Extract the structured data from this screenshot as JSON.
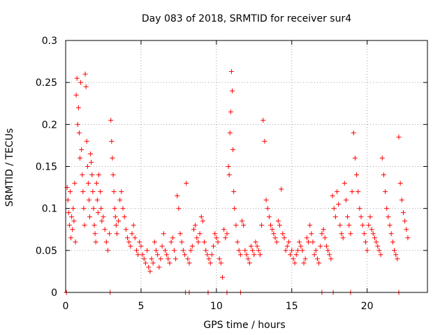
{
  "chart_data": {
    "type": "scatter",
    "title": "Day 083 of 2018, SRMTID for receiver sur4",
    "xlabel": "GPS time / hours",
    "ylabel": "SRMTID / TECUs",
    "xlim": [
      0,
      24
    ],
    "ylim": [
      0,
      0.3
    ],
    "xticks": [
      0,
      5,
      10,
      15,
      20
    ],
    "xtick_labels": [
      "0",
      "5",
      "10",
      "15",
      "20"
    ],
    "yticks": [
      0,
      0.05,
      0.1,
      0.15,
      0.2,
      0.25,
      0.3
    ],
    "ytick_labels": [
      "0",
      "0.05",
      "0.1",
      "0.15",
      "0.2",
      "0.25",
      "0.3"
    ],
    "grid": true,
    "marker": "plus",
    "series_color": "#ff0000",
    "series": [
      {
        "name": "SRMTID",
        "points": [
          [
            0.1,
            0.125
          ],
          [
            0.15,
            0.11
          ],
          [
            0.2,
            0.095
          ],
          [
            0.25,
            0.08
          ],
          [
            0.3,
            0.12
          ],
          [
            0.35,
            0.065
          ],
          [
            0.4,
            0.09
          ],
          [
            0.45,
            0.075
          ],
          [
            0.5,
            0.1
          ],
          [
            0.55,
            0.085
          ],
          [
            0.6,
            0.13
          ],
          [
            0.65,
            0.06
          ],
          [
            0.7,
            0.235
          ],
          [
            0.75,
            0.255
          ],
          [
            0.8,
            0.2
          ],
          [
            0.85,
            0.22
          ],
          [
            0.9,
            0.19
          ],
          [
            0.95,
            0.16
          ],
          [
            1.0,
            0.25
          ],
          [
            1.05,
            0.17
          ],
          [
            1.1,
            0.14
          ],
          [
            1.15,
            0.12
          ],
          [
            1.2,
            0.1
          ],
          [
            1.25,
            0.08
          ],
          [
            1.3,
            0.26
          ],
          [
            1.35,
            0.245
          ],
          [
            1.4,
            0.18
          ],
          [
            1.45,
            0.15
          ],
          [
            1.5,
            0.13
          ],
          [
            1.55,
            0.11
          ],
          [
            1.6,
            0.09
          ],
          [
            1.65,
            0.165
          ],
          [
            1.7,
            0.155
          ],
          [
            1.75,
            0.14
          ],
          [
            1.8,
            0.12
          ],
          [
            1.85,
            0.1
          ],
          [
            1.9,
            0.08
          ],
          [
            1.95,
            0.07
          ],
          [
            2.0,
            0.06
          ],
          [
            2.05,
            0.13
          ],
          [
            2.1,
            0.11
          ],
          [
            2.15,
            0.095
          ],
          [
            2.2,
            0.14
          ],
          [
            2.3,
            0.12
          ],
          [
            2.35,
            0.1
          ],
          [
            2.4,
            0.085
          ],
          [
            2.5,
            0.09
          ],
          [
            2.6,
            0.075
          ],
          [
            2.7,
            0.06
          ],
          [
            2.8,
            0.05
          ],
          [
            2.9,
            0.07
          ],
          [
            3.0,
            0.205
          ],
          [
            3.05,
            0.18
          ],
          [
            3.1,
            0.16
          ],
          [
            3.15,
            0.14
          ],
          [
            3.2,
            0.12
          ],
          [
            3.25,
            0.1
          ],
          [
            3.3,
            0.09
          ],
          [
            3.35,
            0.08
          ],
          [
            3.4,
            0.07
          ],
          [
            3.5,
            0.085
          ],
          [
            3.6,
            0.11
          ],
          [
            3.7,
            0.12
          ],
          [
            3.8,
            0.1
          ],
          [
            3.9,
            0.09
          ],
          [
            4.0,
            0.075
          ],
          [
            4.1,
            0.065
          ],
          [
            4.2,
            0.06
          ],
          [
            4.3,
            0.055
          ],
          [
            4.4,
            0.07
          ],
          [
            4.5,
            0.08
          ],
          [
            4.6,
            0.065
          ],
          [
            4.7,
            0.05
          ],
          [
            4.8,
            0.045
          ],
          [
            4.9,
            0.06
          ],
          [
            5.0,
            0.055
          ],
          [
            5.1,
            0.045
          ],
          [
            5.2,
            0.04
          ],
          [
            5.3,
            0.035
          ],
          [
            5.4,
            0.05
          ],
          [
            5.5,
            0.03
          ],
          [
            5.6,
            0.025
          ],
          [
            5.7,
            0.04
          ],
          [
            5.8,
            0.035
          ],
          [
            5.9,
            0.06
          ],
          [
            6.0,
            0.05
          ],
          [
            6.1,
            0.045
          ],
          [
            6.2,
            0.03
          ],
          [
            6.3,
            0.04
          ],
          [
            6.4,
            0.055
          ],
          [
            6.5,
            0.07
          ],
          [
            6.6,
            0.05
          ],
          [
            6.7,
            0.045
          ],
          [
            6.8,
            0.04
          ],
          [
            6.9,
            0.035
          ],
          [
            7.0,
            0.06
          ],
          [
            7.1,
            0.065
          ],
          [
            7.2,
            0.05
          ],
          [
            7.3,
            0.04
          ],
          [
            7.4,
            0.115
          ],
          [
            7.5,
            0.1
          ],
          [
            7.6,
            0.07
          ],
          [
            7.7,
            0.06
          ],
          [
            7.8,
            0.05
          ],
          [
            7.9,
            0.045
          ],
          [
            8.0,
            0.13
          ],
          [
            8.1,
            0.04
          ],
          [
            8.2,
            0.035
          ],
          [
            8.3,
            0.05
          ],
          [
            8.4,
            0.055
          ],
          [
            8.5,
            0.075
          ],
          [
            8.6,
            0.08
          ],
          [
            8.7,
            0.065
          ],
          [
            8.8,
            0.06
          ],
          [
            8.9,
            0.07
          ],
          [
            9.0,
            0.09
          ],
          [
            9.1,
            0.085
          ],
          [
            9.2,
            0.06
          ],
          [
            9.3,
            0.05
          ],
          [
            9.4,
            0.045
          ],
          [
            9.5,
            0.04
          ],
          [
            9.6,
            0.035
          ],
          [
            9.7,
            0.045
          ],
          [
            9.8,
            0.055
          ],
          [
            9.9,
            0.07
          ],
          [
            10.0,
            0.065
          ],
          [
            10.1,
            0.06
          ],
          [
            10.2,
            0.04
          ],
          [
            10.3,
            0.035
          ],
          [
            10.4,
            0.018
          ],
          [
            10.5,
            0.075
          ],
          [
            10.6,
            0.065
          ],
          [
            10.7,
            0.07
          ],
          [
            10.8,
            0.15
          ],
          [
            10.85,
            0.14
          ],
          [
            10.9,
            0.19
          ],
          [
            10.95,
            0.215
          ],
          [
            11.0,
            0.263
          ],
          [
            11.05,
            0.24
          ],
          [
            11.1,
            0.17
          ],
          [
            11.15,
            0.12
          ],
          [
            11.2,
            0.1
          ],
          [
            11.3,
            0.08
          ],
          [
            11.4,
            0.06
          ],
          [
            11.5,
            0.05
          ],
          [
            11.6,
            0.045
          ],
          [
            11.7,
            0.085
          ],
          [
            11.8,
            0.08
          ],
          [
            11.9,
            0.05
          ],
          [
            12.0,
            0.045
          ],
          [
            12.1,
            0.04
          ],
          [
            12.2,
            0.035
          ],
          [
            12.3,
            0.055
          ],
          [
            12.4,
            0.05
          ],
          [
            12.5,
            0.045
          ],
          [
            12.6,
            0.06
          ],
          [
            12.7,
            0.055
          ],
          [
            12.8,
            0.05
          ],
          [
            12.9,
            0.045
          ],
          [
            13.0,
            0.08
          ],
          [
            13.1,
            0.205
          ],
          [
            13.2,
            0.18
          ],
          [
            13.3,
            0.11
          ],
          [
            13.4,
            0.1
          ],
          [
            13.5,
            0.09
          ],
          [
            13.6,
            0.08
          ],
          [
            13.7,
            0.075
          ],
          [
            13.8,
            0.07
          ],
          [
            13.9,
            0.065
          ],
          [
            14.0,
            0.06
          ],
          [
            14.1,
            0.085
          ],
          [
            14.2,
            0.08
          ],
          [
            14.3,
            0.123
          ],
          [
            14.4,
            0.07
          ],
          [
            14.5,
            0.065
          ],
          [
            14.6,
            0.05
          ],
          [
            14.7,
            0.055
          ],
          [
            14.8,
            0.06
          ],
          [
            14.9,
            0.045
          ],
          [
            15.0,
            0.05
          ],
          [
            15.1,
            0.04
          ],
          [
            15.2,
            0.035
          ],
          [
            15.3,
            0.045
          ],
          [
            15.4,
            0.05
          ],
          [
            15.5,
            0.06
          ],
          [
            15.6,
            0.055
          ],
          [
            15.7,
            0.05
          ],
          [
            15.8,
            0.035
          ],
          [
            15.9,
            0.04
          ],
          [
            16.0,
            0.065
          ],
          [
            16.1,
            0.06
          ],
          [
            16.2,
            0.08
          ],
          [
            16.3,
            0.07
          ],
          [
            16.4,
            0.06
          ],
          [
            16.5,
            0.045
          ],
          [
            16.6,
            0.05
          ],
          [
            16.7,
            0.04
          ],
          [
            16.8,
            0.035
          ],
          [
            16.9,
            0.055
          ],
          [
            17.0,
            0.07
          ],
          [
            17.1,
            0.075
          ],
          [
            17.2,
            0.065
          ],
          [
            17.3,
            0.055
          ],
          [
            17.4,
            0.05
          ],
          [
            17.5,
            0.045
          ],
          [
            17.6,
            0.04
          ],
          [
            17.7,
            0.115
          ],
          [
            17.8,
            0.1
          ],
          [
            17.9,
            0.09
          ],
          [
            18.0,
            0.12
          ],
          [
            18.1,
            0.105
          ],
          [
            18.2,
            0.08
          ],
          [
            18.3,
            0.07
          ],
          [
            18.4,
            0.065
          ],
          [
            18.5,
            0.13
          ],
          [
            18.6,
            0.11
          ],
          [
            18.7,
            0.09
          ],
          [
            18.8,
            0.08
          ],
          [
            18.9,
            0.07
          ],
          [
            19.0,
            0.12
          ],
          [
            19.1,
            0.19
          ],
          [
            19.2,
            0.16
          ],
          [
            19.3,
            0.14
          ],
          [
            19.4,
            0.12
          ],
          [
            19.5,
            0.1
          ],
          [
            19.6,
            0.09
          ],
          [
            19.7,
            0.08
          ],
          [
            19.8,
            0.07
          ],
          [
            19.9,
            0.06
          ],
          [
            20.0,
            0.05
          ],
          [
            20.1,
            0.08
          ],
          [
            20.2,
            0.09
          ],
          [
            20.3,
            0.075
          ],
          [
            20.4,
            0.07
          ],
          [
            20.5,
            0.065
          ],
          [
            20.6,
            0.06
          ],
          [
            20.7,
            0.055
          ],
          [
            20.8,
            0.05
          ],
          [
            20.9,
            0.045
          ],
          [
            21.0,
            0.16
          ],
          [
            21.1,
            0.14
          ],
          [
            21.2,
            0.12
          ],
          [
            21.3,
            0.1
          ],
          [
            21.4,
            0.09
          ],
          [
            21.5,
            0.08
          ],
          [
            21.6,
            0.07
          ],
          [
            21.7,
            0.06
          ],
          [
            21.8,
            0.05
          ],
          [
            21.9,
            0.045
          ],
          [
            22.0,
            0.04
          ],
          [
            22.1,
            0.185
          ],
          [
            22.2,
            0.13
          ],
          [
            22.3,
            0.11
          ],
          [
            22.4,
            0.095
          ],
          [
            22.5,
            0.085
          ],
          [
            22.6,
            0.075
          ],
          [
            22.7,
            0.065
          ]
        ]
      },
      {
        "name": "zero-markers",
        "points": [
          [
            0.05,
            0
          ],
          [
            2.95,
            0
          ],
          [
            7.95,
            0
          ],
          [
            8.2,
            0
          ],
          [
            9.45,
            0
          ],
          [
            10.7,
            0
          ],
          [
            11.6,
            0
          ],
          [
            17.0,
            0
          ],
          [
            17.75,
            0
          ],
          [
            18.9,
            0
          ],
          [
            22.1,
            0
          ]
        ]
      }
    ]
  }
}
